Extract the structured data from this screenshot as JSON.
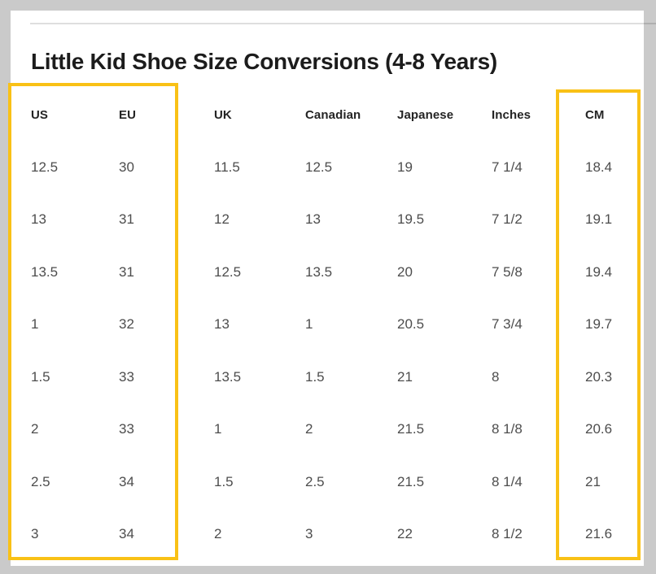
{
  "page": {
    "background_color": "#cacaca",
    "card_color": "#ffffff",
    "highlight_color": "#f9c116"
  },
  "title": "Little Kid Shoe Size Conversions (4-8 Years)",
  "table": {
    "headers": [
      "US",
      "EU",
      "UK",
      "Canadian",
      "Japanese",
      "Inches",
      "CM"
    ],
    "rows": [
      [
        "12.5",
        "30",
        "11.5",
        "12.5",
        "19",
        "7 1/4",
        "18.4"
      ],
      [
        "13",
        "31",
        "12",
        "13",
        "19.5",
        "7 1/2",
        "19.1"
      ],
      [
        "13.5",
        "31",
        "12.5",
        "13.5",
        "20",
        "7 5/8",
        "19.4"
      ],
      [
        "1",
        "32",
        "13",
        "1",
        "20.5",
        "7 3/4",
        "19.7"
      ],
      [
        "1.5",
        "33",
        "13.5",
        "1.5",
        "21",
        "8",
        "20.3"
      ],
      [
        "2",
        "33",
        "1",
        "2",
        "21.5",
        "8 1/8",
        "20.6"
      ],
      [
        "2.5",
        "34",
        "1.5",
        "2.5",
        "21.5",
        "8 1/4",
        "21"
      ],
      [
        "3",
        "34",
        "2",
        "3",
        "22",
        "8 1/2",
        "21.6"
      ]
    ],
    "highlighted_column_groups": [
      "US+EU",
      "CM"
    ]
  }
}
